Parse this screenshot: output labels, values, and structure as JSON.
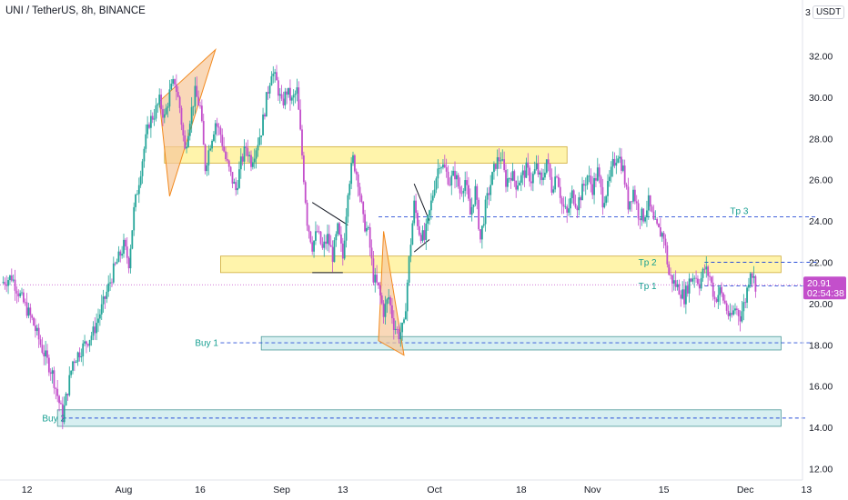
{
  "header": {
    "symbol_title": "UNI / TetherUS, 8h, BINANCE",
    "currency": "USDT",
    "top_axis_value": "3"
  },
  "colors": {
    "up": "#26a69a",
    "down": "#c34fcb",
    "zone_yellow_fill": "#fff3a3",
    "zone_yellow_stroke": "#c9a227",
    "zone_teal_fill": "#d3eef0",
    "zone_teal_stroke": "#3a8f8f",
    "dash_line": "#2a4fd8",
    "triangle_fill": "#f7c89a",
    "triangle_stroke": "#f2891e",
    "price_tag_bg": "#c34fcb",
    "current_price_line": "#c34fcb"
  },
  "chart_data": {
    "type": "candlestick",
    "y_axis": {
      "range": [
        11.6,
        34.2
      ],
      "ticks": [
        "32.00",
        "30.00",
        "28.00",
        "26.00",
        "24.00",
        "22.00",
        "20.00",
        "18.00",
        "16.00",
        "14.00",
        "12.00"
      ],
      "tick_values": [
        32,
        30,
        28,
        26,
        24,
        22,
        20,
        18,
        16,
        14,
        12
      ]
    },
    "x_axis": {
      "ticks": [
        {
          "label": "12",
          "day": -19
        },
        {
          "label": "Aug",
          "day": 0
        },
        {
          "label": "16",
          "day": 15
        },
        {
          "label": "Sep",
          "day": 31
        },
        {
          "label": "13",
          "day": 43
        },
        {
          "label": "Oct",
          "day": 61
        },
        {
          "label": "18",
          "day": 78
        },
        {
          "label": "Nov",
          "day": 92
        },
        {
          "label": "15",
          "day": 106
        },
        {
          "label": "Dec",
          "day": 122
        },
        {
          "label": "13",
          "day": 134
        }
      ]
    },
    "price_path": [
      [
        -24,
        21.0
      ],
      [
        -22,
        21.3
      ],
      [
        -20,
        20.2
      ],
      [
        -18,
        19.2
      ],
      [
        -16,
        17.8
      ],
      [
        -14,
        16.6
      ],
      [
        -12,
        14.5
      ],
      [
        -10,
        17.2
      ],
      [
        -8,
        17.9
      ],
      [
        -6,
        18.6
      ],
      [
        -4,
        20.0
      ],
      [
        -2,
        21.6
      ],
      [
        0,
        22.8
      ],
      [
        1,
        22.0
      ],
      [
        2,
        24.5
      ],
      [
        3,
        26.0
      ],
      [
        4,
        27.5
      ],
      [
        5,
        28.8
      ],
      [
        6,
        29.2
      ],
      [
        7,
        29.8
      ],
      [
        8,
        29.0
      ],
      [
        9,
        30.2
      ],
      [
        10,
        30.8
      ],
      [
        11,
        29.5
      ],
      [
        12,
        27.4
      ],
      [
        13,
        29.0
      ],
      [
        14,
        30.2
      ],
      [
        15,
        29.5
      ],
      [
        16,
        26.6
      ],
      [
        17,
        27.8
      ],
      [
        18,
        28.8
      ],
      [
        19,
        28.2
      ],
      [
        20,
        27.0
      ],
      [
        21,
        26.2
      ],
      [
        22,
        25.5
      ],
      [
        23,
        26.8
      ],
      [
        24,
        27.6
      ],
      [
        25,
        26.9
      ],
      [
        26,
        27.6
      ],
      [
        27,
        28.4
      ],
      [
        28,
        29.9
      ],
      [
        29,
        31.3
      ],
      [
        30,
        30.7
      ],
      [
        31,
        29.6
      ],
      [
        32,
        30.3
      ],
      [
        33,
        29.8
      ],
      [
        34,
        30.3
      ],
      [
        35,
        27.2
      ],
      [
        36,
        24.0
      ],
      [
        37,
        22.8
      ],
      [
        38,
        23.5
      ],
      [
        39,
        22.6
      ],
      [
        40,
        23.2
      ],
      [
        41,
        22.3
      ],
      [
        42,
        23.6
      ],
      [
        43,
        22.2
      ],
      [
        44,
        25.6
      ],
      [
        45,
        27.0
      ],
      [
        46,
        26.0
      ],
      [
        47,
        24.0
      ],
      [
        48,
        23.4
      ],
      [
        49,
        21.3
      ],
      [
        50,
        20.7
      ],
      [
        51,
        19.6
      ],
      [
        52,
        20.3
      ],
      [
        53,
        19.0
      ],
      [
        54,
        18.5
      ],
      [
        55,
        18.9
      ],
      [
        56,
        22.1
      ],
      [
        57,
        24.8
      ],
      [
        58,
        23.5
      ],
      [
        59,
        23.1
      ],
      [
        60,
        24.4
      ],
      [
        61,
        25.8
      ],
      [
        62,
        26.9
      ],
      [
        63,
        26.5
      ],
      [
        64,
        25.9
      ],
      [
        65,
        26.3
      ],
      [
        66,
        25.4
      ],
      [
        67,
        26.0
      ],
      [
        68,
        24.3
      ],
      [
        69,
        25.5
      ],
      [
        70,
        23.1
      ],
      [
        71,
        24.7
      ],
      [
        72,
        25.8
      ],
      [
        73,
        26.8
      ],
      [
        74,
        27.1
      ],
      [
        75,
        25.9
      ],
      [
        76,
        26.3
      ],
      [
        77,
        25.8
      ],
      [
        78,
        26.1
      ],
      [
        79,
        26.5
      ],
      [
        80,
        26.0
      ],
      [
        81,
        26.6
      ],
      [
        82,
        25.8
      ],
      [
        83,
        27.0
      ],
      [
        84,
        25.6
      ],
      [
        85,
        26.4
      ],
      [
        86,
        24.8
      ],
      [
        87,
        24.3
      ],
      [
        88,
        25.3
      ],
      [
        89,
        24.8
      ],
      [
        90,
        25.5
      ],
      [
        91,
        26.2
      ],
      [
        92,
        25.6
      ],
      [
        93,
        26.4
      ],
      [
        94,
        25.0
      ],
      [
        95,
        25.6
      ],
      [
        96,
        26.7
      ],
      [
        97,
        27.3
      ],
      [
        98,
        26.5
      ],
      [
        99,
        24.8
      ],
      [
        100,
        25.5
      ],
      [
        101,
        24.4
      ],
      [
        102,
        24.2
      ],
      [
        103,
        24.9
      ],
      [
        104,
        23.9
      ],
      [
        105,
        23.5
      ],
      [
        106,
        23.3
      ],
      [
        107,
        21.4
      ],
      [
        108,
        21.0
      ],
      [
        109,
        20.7
      ],
      [
        110,
        20.3
      ],
      [
        111,
        21.1
      ],
      [
        112,
        21.4
      ],
      [
        113,
        21.0
      ],
      [
        114,
        21.7
      ],
      [
        115,
        21.3
      ],
      [
        116,
        20.2
      ],
      [
        117,
        20.6
      ],
      [
        118,
        20.0
      ],
      [
        119,
        19.2
      ],
      [
        120,
        19.8
      ],
      [
        121,
        19.4
      ],
      [
        122,
        20.2
      ],
      [
        123,
        21.7
      ],
      [
        124,
        20.91
      ]
    ],
    "last_price": "20.91",
    "countdown": "02:54:38",
    "last_price_value": 20.91,
    "zones": [
      {
        "kind": "resistance",
        "day_from": 8,
        "day_to": 87,
        "price_low": 26.8,
        "price_high": 27.6
      },
      {
        "kind": "resistance",
        "day_from": 19,
        "day_to": 129,
        "price_low": 21.5,
        "price_high": 22.3
      },
      {
        "kind": "support",
        "day_from": 27,
        "day_to": 129,
        "price_low": 17.75,
        "price_high": 18.4
      },
      {
        "kind": "support",
        "day_from": -13,
        "day_to": 129,
        "price_low": 14.05,
        "price_high": 14.85
      }
    ],
    "dashed_lines": [
      {
        "price": 24.2,
        "day_from": 50,
        "day_to": 136
      },
      {
        "price": 22.0,
        "day_from": 114,
        "day_to": 136
      },
      {
        "price": 20.85,
        "day_from": 114,
        "day_to": 136
      },
      {
        "price": 18.1,
        "day_from": 19,
        "day_to": 135
      },
      {
        "price": 14.45,
        "day_from": -12,
        "day_to": 134
      }
    ],
    "labels": [
      {
        "text": "Tp 3",
        "day": 119,
        "price": 24.5
      },
      {
        "text": "Tp 2",
        "day": 101,
        "price": 22.0
      },
      {
        "text": "Tp 1",
        "day": 101,
        "price": 20.85
      },
      {
        "text": "Buy 1",
        "day": 14,
        "price": 18.1
      },
      {
        "text": "Buy 2",
        "day": -16,
        "price": 14.45
      }
    ],
    "triangles": [
      {
        "filled": true,
        "points": [
          [
            7,
            29.8
          ],
          [
            18,
            32.3
          ],
          [
            9,
            25.2
          ]
        ]
      },
      {
        "filled": true,
        "points": [
          [
            51,
            23.5
          ],
          [
            55,
            17.5
          ],
          [
            50,
            18.2
          ]
        ]
      },
      {
        "filled": false,
        "points": [
          [
            37,
            24.9
          ],
          [
            44,
            23.8
          ],
          [
            37,
            21.5
          ],
          [
            43,
            21.5
          ]
        ]
      },
      {
        "filled": false,
        "points": [
          [
            57,
            25.8
          ],
          [
            60,
            24.0
          ],
          [
            57,
            22.5
          ],
          [
            60,
            23.1
          ]
        ]
      }
    ]
  }
}
